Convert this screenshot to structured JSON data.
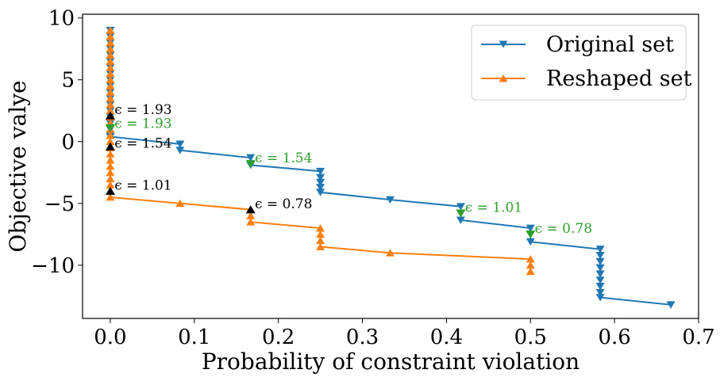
{
  "chart_data": {
    "type": "line",
    "xlabel": "Probability of constraint violation",
    "ylabel": "Objective valye",
    "xlim": [
      -0.033,
      0.7
    ],
    "ylim": [
      -14.3,
      10.3
    ],
    "xticks": [
      0.0,
      0.1,
      0.2,
      0.3,
      0.4,
      0.5,
      0.6,
      0.7
    ],
    "xtick_labels": [
      "0.0",
      "0.1",
      "0.2",
      "0.3",
      "0.4",
      "0.5",
      "0.6",
      "0.7"
    ],
    "yticks": [
      10,
      5,
      0,
      -5,
      -10
    ],
    "ytick_labels": [
      "10",
      "5",
      "0",
      "−5",
      "−10"
    ],
    "legend_position": "top-right",
    "colors": {
      "original": "#1f77b4",
      "reshaped": "#ff7f0e",
      "green": "#2ca02c",
      "black": "#000000"
    },
    "series": [
      {
        "name": "Original set",
        "marker": "triangle-down",
        "points": [
          [
            0.0,
            9.0
          ],
          [
            0.0,
            8.5
          ],
          [
            0.0,
            8.0
          ],
          [
            0.0,
            7.5
          ],
          [
            0.0,
            7.0
          ],
          [
            0.0,
            6.5
          ],
          [
            0.0,
            6.0
          ],
          [
            0.0,
            5.5
          ],
          [
            0.0,
            5.0
          ],
          [
            0.0,
            4.5
          ],
          [
            0.0,
            4.0
          ],
          [
            0.0,
            3.5
          ],
          [
            0.0,
            3.0
          ],
          [
            0.0,
            2.5
          ],
          [
            0.0,
            2.0
          ],
          [
            0.0,
            1.5
          ],
          [
            0.0,
            1.0
          ],
          [
            0.0,
            0.5
          ],
          [
            0.0,
            0.4
          ],
          [
            0.083,
            -0.2
          ],
          [
            0.083,
            -0.7
          ],
          [
            0.167,
            -1.3
          ],
          [
            0.167,
            -1.9
          ],
          [
            0.25,
            -2.4
          ],
          [
            0.25,
            -2.9
          ],
          [
            0.25,
            -3.3
          ],
          [
            0.25,
            -3.7
          ],
          [
            0.25,
            -4.1
          ],
          [
            0.333,
            -4.7
          ],
          [
            0.417,
            -5.25
          ],
          [
            0.417,
            -5.8
          ],
          [
            0.417,
            -6.35
          ],
          [
            0.5,
            -7.0
          ],
          [
            0.5,
            -7.5
          ],
          [
            0.5,
            -8.1
          ],
          [
            0.583,
            -8.7
          ],
          [
            0.583,
            -9.2
          ],
          [
            0.583,
            -9.7
          ],
          [
            0.583,
            -10.2
          ],
          [
            0.583,
            -10.7
          ],
          [
            0.583,
            -11.2
          ],
          [
            0.583,
            -11.7
          ],
          [
            0.583,
            -12.2
          ],
          [
            0.583,
            -12.6
          ],
          [
            0.667,
            -13.2
          ]
        ]
      },
      {
        "name": "Reshaped set",
        "marker": "triangle-up",
        "points": [
          [
            0.0,
            9.0
          ],
          [
            0.0,
            8.5
          ],
          [
            0.0,
            8.0
          ],
          [
            0.0,
            7.5
          ],
          [
            0.0,
            7.0
          ],
          [
            0.0,
            6.5
          ],
          [
            0.0,
            6.0
          ],
          [
            0.0,
            5.5
          ],
          [
            0.0,
            5.0
          ],
          [
            0.0,
            4.5
          ],
          [
            0.0,
            4.0
          ],
          [
            0.0,
            3.5
          ],
          [
            0.0,
            3.0
          ],
          [
            0.0,
            2.5
          ],
          [
            0.0,
            2.0
          ],
          [
            0.0,
            1.5
          ],
          [
            0.0,
            1.0
          ],
          [
            0.0,
            0.5
          ],
          [
            0.0,
            0.0
          ],
          [
            0.0,
            -0.5
          ],
          [
            0.0,
            -1.0
          ],
          [
            0.0,
            -1.5
          ],
          [
            0.0,
            -2.0
          ],
          [
            0.0,
            -2.5
          ],
          [
            0.0,
            -3.0
          ],
          [
            0.0,
            -3.5
          ],
          [
            0.0,
            -4.0
          ],
          [
            0.0,
            -4.5
          ],
          [
            0.083,
            -5.0
          ],
          [
            0.167,
            -5.5
          ],
          [
            0.167,
            -6.0
          ],
          [
            0.167,
            -6.5
          ],
          [
            0.25,
            -7.0
          ],
          [
            0.25,
            -7.5
          ],
          [
            0.25,
            -8.0
          ],
          [
            0.25,
            -8.5
          ],
          [
            0.333,
            -9.0
          ],
          [
            0.5,
            -9.5
          ],
          [
            0.5,
            -10.0
          ],
          [
            0.5,
            -10.5
          ]
        ]
      }
    ],
    "highlight_markers": [
      {
        "color": "green",
        "marker": "triangle-down",
        "x": 0.0,
        "y": 1.1
      },
      {
        "color": "green",
        "marker": "triangle-down",
        "x": 0.167,
        "y": -1.8
      },
      {
        "color": "green",
        "marker": "triangle-down",
        "x": 0.417,
        "y": -5.8
      },
      {
        "color": "green",
        "marker": "triangle-down",
        "x": 0.5,
        "y": -7.5
      },
      {
        "color": "black",
        "marker": "triangle-up",
        "x": 0.0,
        "y": 2.1
      },
      {
        "color": "black",
        "marker": "triangle-up",
        "x": 0.0,
        "y": -0.4
      },
      {
        "color": "black",
        "marker": "triangle-up",
        "x": 0.0,
        "y": -4.0
      },
      {
        "color": "black",
        "marker": "triangle-up",
        "x": 0.167,
        "y": -5.5
      }
    ],
    "annotations": [
      {
        "text": "ϵ = 1.93",
        "color": "black",
        "x": 0.005,
        "y": 2.6
      },
      {
        "text": "ϵ = 1.93",
        "color": "green",
        "x": 0.005,
        "y": 1.5
      },
      {
        "text": "ϵ = 1.54",
        "color": "black",
        "x": 0.005,
        "y": -0.1
      },
      {
        "text": "ϵ = 1.01",
        "color": "black",
        "x": 0.005,
        "y": -3.5
      },
      {
        "text": "ϵ = 1.54",
        "color": "green",
        "x": 0.172,
        "y": -1.3
      },
      {
        "text": "ϵ = 0.78",
        "color": "black",
        "x": 0.172,
        "y": -5.0
      },
      {
        "text": "ϵ = 1.01",
        "color": "green",
        "x": 0.422,
        "y": -5.3
      },
      {
        "text": "ϵ = 0.78",
        "color": "green",
        "x": 0.505,
        "y": -7.0
      }
    ]
  }
}
